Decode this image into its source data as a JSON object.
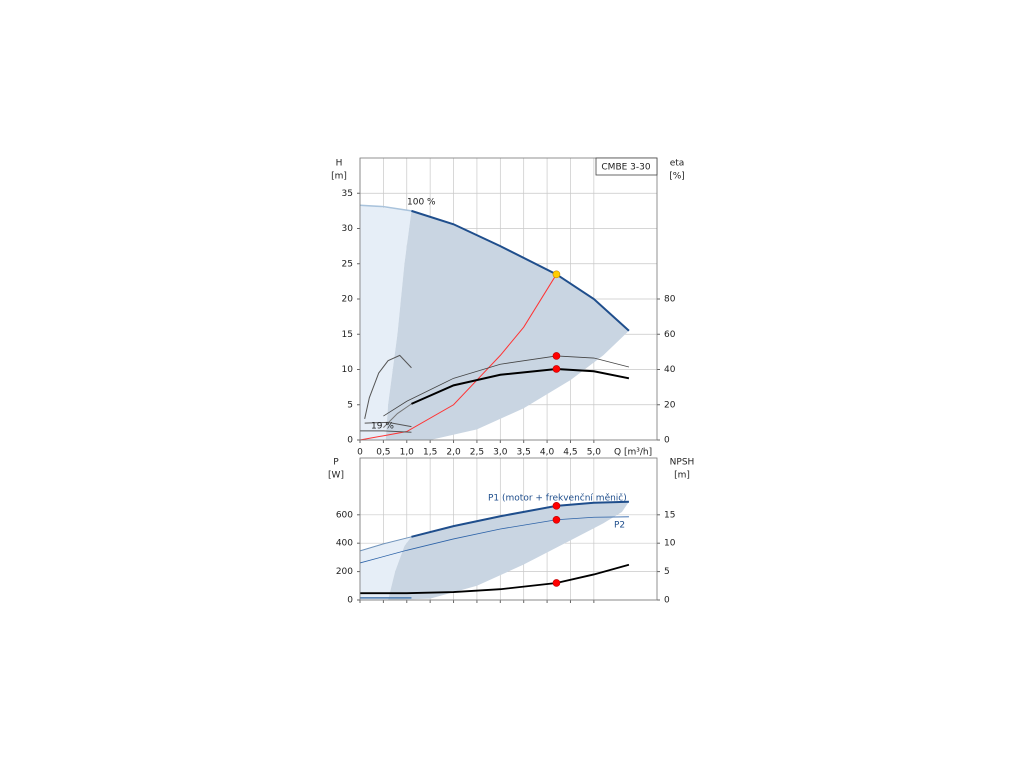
{
  "chart_data": [
    {
      "type": "line",
      "title": "CMBE 3-30",
      "ylabel": "H",
      "yunit": "[m]",
      "y2label": "eta",
      "y2unit": "[%]",
      "xlabel": "Q [m³/h]",
      "annotations": [
        "100 %",
        "19 %"
      ],
      "xlim": [
        0,
        6.35
      ],
      "xticks": [
        0,
        {
          "value": 0.5,
          "label": "0,5"
        },
        {
          "value": 1,
          "label": "1,0"
        },
        {
          "value": 1.5,
          "label": "1,5"
        },
        {
          "value": 2,
          "label": "2,0"
        },
        {
          "value": 2.5,
          "label": "2,5"
        },
        {
          "value": 3,
          "label": "3,0"
        },
        {
          "value": 3.5,
          "label": "3,5"
        },
        {
          "value": 4,
          "label": "4,0"
        },
        {
          "value": 4.5,
          "label": "4,5"
        },
        {
          "value": 5,
          "label": "5,0"
        }
      ],
      "ylim": [
        0,
        40
      ],
      "yticks": [
        0,
        5,
        10,
        15,
        20,
        25,
        30,
        35
      ],
      "y2lim": [
        0,
        160
      ],
      "y2ticks": [
        0,
        20,
        40,
        60,
        80
      ],
      "grid": true,
      "series": [
        {
          "style": "area",
          "color": "#e6eef7",
          "x": [
            0,
            0,
            1.1,
            0.95,
            0.8,
            0.6,
            0.55
          ],
          "values": [
            0,
            33.3,
            32.5,
            25,
            15,
            5,
            0
          ]
        },
        {
          "style": "area",
          "color": "#c9d5e2",
          "x": [
            1.1,
            2,
            3,
            4.2,
            5,
            5.75,
            5.2,
            4.5,
            3.5,
            2.5,
            1.5,
            0.55,
            0.6,
            0.8,
            0.95
          ],
          "values": [
            32.5,
            30.6,
            27.5,
            23.5,
            20,
            15.5,
            12,
            8.5,
            4.5,
            1.5,
            0,
            0,
            5,
            15,
            25
          ]
        },
        {
          "style": "line",
          "color": "#a9c3dc",
          "width": 1.5,
          "x": [
            0,
            0.5,
            1.1
          ],
          "values": [
            33.3,
            33.1,
            32.5
          ]
        },
        {
          "style": "line",
          "color": "#1f4e8c",
          "width": 2,
          "x": [
            1.1,
            2,
            3,
            4.2,
            5,
            5.75
          ],
          "values": [
            32.5,
            30.6,
            27.5,
            23.5,
            20,
            15.5
          ]
        },
        {
          "style": "line",
          "color": "#ff3333",
          "width": 1,
          "x": [
            0,
            1,
            2,
            2.5,
            3,
            3.5,
            4.2
          ],
          "values": [
            0,
            1.2,
            5,
            8.5,
            12,
            16,
            23.5
          ]
        },
        {
          "style": "line",
          "color": "#555555",
          "width": 1,
          "x": [
            0.1,
            0.6,
            1.1
          ],
          "values": [
            2.4,
            2.5,
            1.9
          ]
        },
        {
          "style": "line",
          "color": "#555555",
          "width": 1,
          "x": [
            0,
            0.5,
            1.1
          ],
          "values": [
            1.3,
            1.3,
            1.1
          ]
        },
        {
          "style": "line",
          "axis": "y2",
          "color": "#555555",
          "width": 1,
          "x": [
            0.1,
            0.2,
            0.4,
            0.6,
            0.85,
            1.1
          ],
          "values": [
            12,
            24,
            38,
            45,
            48,
            41
          ]
        },
        {
          "style": "line",
          "axis": "y2",
          "color": "#444444",
          "width": 0.8,
          "x": [
            0.5,
            1,
            2,
            3,
            4.2,
            5,
            5.75
          ],
          "values": [
            13.6,
            22,
            35,
            43,
            47.7,
            46.5,
            41.4
          ]
        },
        {
          "style": "line",
          "axis": "y2",
          "color": "#777777",
          "width": 1,
          "x": [
            0.5,
            0.8,
            1.1
          ],
          "values": [
            7,
            15,
            20.5
          ]
        },
        {
          "style": "line",
          "axis": "y2",
          "color": "#000000",
          "width": 2,
          "x": [
            1.1,
            2,
            3,
            4.2,
            5,
            5.75
          ],
          "values": [
            20.5,
            31,
            37,
            40.3,
            39,
            35
          ]
        },
        {
          "style": "marker",
          "color": "#ffcc00",
          "x": [
            4.2
          ],
          "values": [
            23.5
          ]
        },
        {
          "style": "marker",
          "axis": "y2",
          "color": "#ff0000",
          "x": [
            4.2,
            4.2
          ],
          "values": [
            40.3,
            47.7
          ]
        }
      ]
    },
    {
      "type": "line",
      "ylabel": "P",
      "yunit": "[W]",
      "y2label": "NPSH",
      "y2unit": "[m]",
      "annotations": [
        "P1 (motor + frekvenční měnič)",
        "P2"
      ],
      "xlim": [
        0,
        6.35
      ],
      "ylim": [
        0,
        1000
      ],
      "yticks": [
        0,
        200,
        400,
        600
      ],
      "y2lim": [
        0,
        25
      ],
      "y2ticks": [
        0,
        5,
        10,
        15
      ],
      "grid": true,
      "series": [
        {
          "style": "area",
          "color": "#e6eef7",
          "x": [
            0,
            0,
            1.1,
            0.95,
            0.75,
            0.6
          ],
          "values": [
            0,
            346,
            445,
            380,
            200,
            0
          ]
        },
        {
          "style": "area",
          "color": "#c9d5e2",
          "x": [
            1.1,
            2,
            3,
            4.2,
            5,
            5.75,
            5.6,
            5.2,
            4.5,
            3.5,
            2.5,
            1.5,
            0.6,
            0.75,
            0.95
          ],
          "values": [
            445,
            520,
            590,
            663,
            685,
            692,
            620,
            540,
            420,
            250,
            100,
            10,
            0,
            200,
            380
          ]
        },
        {
          "style": "line",
          "color": "#6f93bb",
          "width": 1,
          "x": [
            0,
            0.5,
            1.1
          ],
          "values": [
            346,
            395,
            445
          ]
        },
        {
          "style": "line",
          "color": "#1f4e8c",
          "width": 2,
          "x": [
            1.1,
            2,
            3,
            4.2,
            5,
            5.75
          ],
          "values": [
            445,
            520,
            590,
            663,
            685,
            692
          ]
        },
        {
          "style": "line",
          "color": "#2d63a8",
          "width": 0.8,
          "x": [
            0,
            1,
            2,
            3,
            4.2,
            5,
            5.75
          ],
          "values": [
            261,
            350,
            430,
            500,
            565,
            583,
            586
          ]
        },
        {
          "style": "line",
          "color": "#4a7ab0",
          "width": 1.5,
          "x": [
            0,
            1.1
          ],
          "values": [
            15,
            15
          ]
        },
        {
          "style": "line",
          "axis": "y2",
          "color": "#000000",
          "width": 1.8,
          "x": [
            0,
            1,
            2,
            3,
            4.2,
            5,
            5.75
          ],
          "values": [
            1.2,
            1.2,
            1.4,
            1.9,
            3,
            4.5,
            6.2
          ]
        },
        {
          "style": "marker",
          "color": "#ff0000",
          "x": [
            4.2,
            4.2
          ],
          "values": [
            663,
            565
          ]
        },
        {
          "style": "marker",
          "axis": "y2",
          "color": "#ff0000",
          "x": [
            4.2
          ],
          "values": [
            3
          ]
        }
      ]
    }
  ]
}
